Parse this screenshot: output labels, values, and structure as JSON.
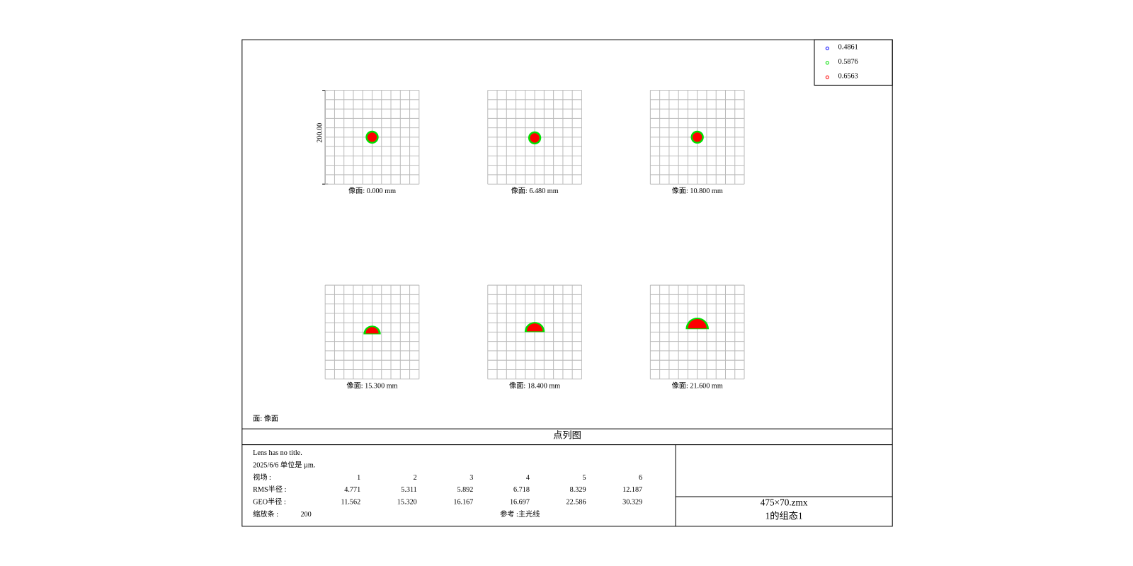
{
  "legend": [
    {
      "label": "0.4861",
      "color": "#0000ff"
    },
    {
      "label": "0.5876",
      "color": "#00e000"
    },
    {
      "label": "0.6563",
      "color": "#ff0000"
    }
  ],
  "plots": [
    {
      "label": "像面: 0.000 mm"
    },
    {
      "label": "像面: 6.480 mm"
    },
    {
      "label": "像面: 10.800 mm"
    },
    {
      "label": "像面: 15.300 mm"
    },
    {
      "label": "像面: 18.400 mm"
    },
    {
      "label": "像面: 21.600 mm"
    }
  ],
  "scale_label": "200.00",
  "surface": "面: 像面",
  "title": "点列图",
  "info": {
    "lens": "Lens has no title.",
    "date_units": "2025/6/6  单位是 µm.",
    "field_label": "视场    :",
    "fields": [
      "1",
      "2",
      "3",
      "4",
      "5",
      "6"
    ],
    "rms_label": "RMS半径 :",
    "rms": [
      "4.771",
      "5.311",
      "5.892",
      "6.718",
      "8.329",
      "12.187"
    ],
    "geo_label": "GEO半径 :",
    "geo": [
      "11.562",
      "15.320",
      "16.167",
      "16.697",
      "22.586",
      "30.329"
    ],
    "scale_bar_label": "缩放条  :",
    "scale_bar": "200",
    "reference": "参考  :主光线"
  },
  "file": {
    "name": "475×70.zmx",
    "config": "1的组态1"
  }
}
